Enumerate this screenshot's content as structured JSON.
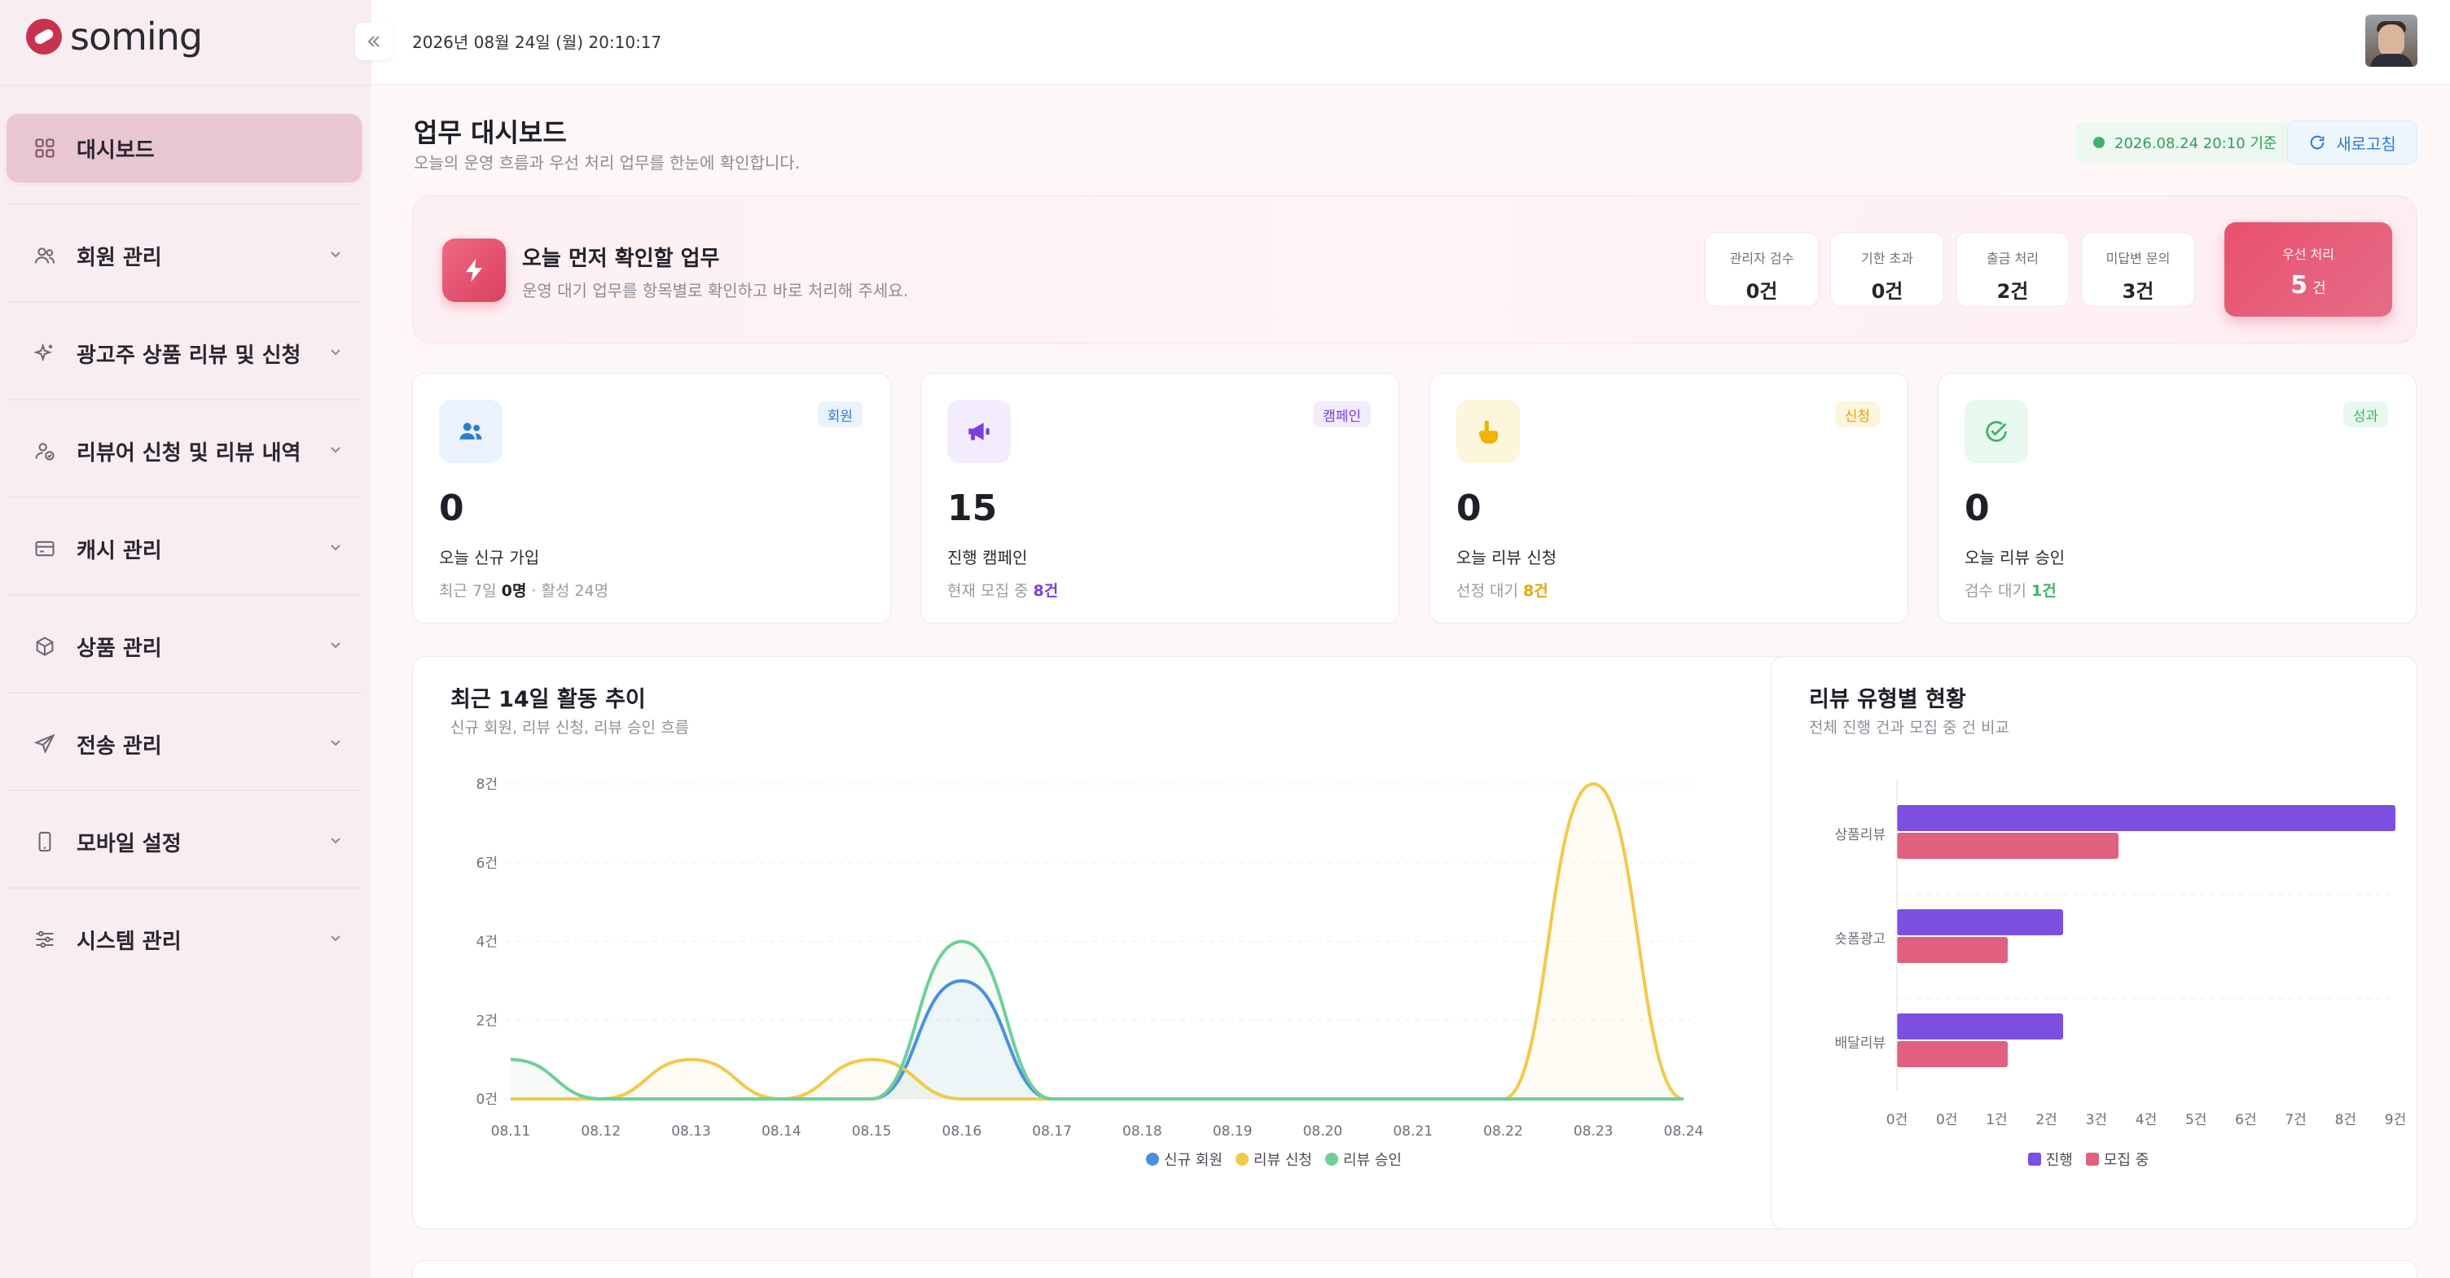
{
  "brand": {
    "name": "soming"
  },
  "topbar": {
    "datetime": "2026년 08월 24일 (월) 20:10:17"
  },
  "sidebar": {
    "items": [
      {
        "label": "대시보드",
        "icon": "grid-icon",
        "active": true
      },
      {
        "label": "회원 관리",
        "icon": "users-icon"
      },
      {
        "label": "광고주 상품 리뷰 및 신청",
        "icon": "sparkle-icon"
      },
      {
        "label": "리뷰어 신청 및 리뷰 내역",
        "icon": "user-check-icon"
      },
      {
        "label": "캐시 관리",
        "icon": "card-icon"
      },
      {
        "label": "상품 관리",
        "icon": "box-icon"
      },
      {
        "label": "전송 관리",
        "icon": "send-icon"
      },
      {
        "label": "모바일 설정",
        "icon": "mobile-icon"
      },
      {
        "label": "시스템 관리",
        "icon": "sliders-icon"
      }
    ]
  },
  "header": {
    "title": "업무 대시보드",
    "subtitle": "오늘의 운영 흐름과 우선 처리 업무를 한눈에 확인합니다.",
    "asof": "2026.08.24 20:10 기준",
    "refresh_label": "새로고침"
  },
  "banner": {
    "title": "오늘 먼저 확인할 업무",
    "subtitle": "운영 대기 업무를 항목별로 확인하고 바로 처리해 주세요.",
    "minis": [
      {
        "label": "관리자 검수",
        "value": "0건"
      },
      {
        "label": "기한 초과",
        "value": "0건"
      },
      {
        "label": "출금 처리",
        "value": "2건"
      },
      {
        "label": "미답변 문의",
        "value": "3건"
      }
    ],
    "urgent": {
      "label": "우선 처리",
      "value": "5",
      "unit": "건"
    }
  },
  "cards": [
    {
      "badge": "회원",
      "value": "0",
      "label": "오늘 신규 가입",
      "foot_pre": "최근 7일 ",
      "foot_val": "0명",
      "foot_post": " · 활성 24명",
      "color": "#2e7dd1"
    },
    {
      "badge": "캠페인",
      "value": "15",
      "label": "진행 캠페인",
      "foot_pre": "현재 모집 중 ",
      "foot_val": "8건",
      "foot_post": "",
      "color": "#7a3fe0"
    },
    {
      "badge": "신청",
      "value": "0",
      "label": "오늘 리뷰 신청",
      "foot_pre": "선정 대기 ",
      "foot_val": "8건",
      "foot_post": "",
      "color": "#e0a800"
    },
    {
      "badge": "성과",
      "value": "0",
      "label": "오늘 리뷰 승인",
      "foot_pre": "검수 대기 ",
      "foot_val": "1건",
      "foot_post": "",
      "color": "#3fb26a"
    }
  ],
  "line_panel": {
    "title": "최근 14일 활동 추이",
    "subtitle": "신규 회원, 리뷰 신청, 리뷰 승인 흐름"
  },
  "bar_panel": {
    "title": "리뷰 유형별 현황",
    "subtitle": "전체 진행 건과 모집 중 건 비교"
  },
  "chart_data": [
    {
      "type": "line",
      "x": [
        "08.11",
        "08.12",
        "08.13",
        "08.14",
        "08.15",
        "08.16",
        "08.17",
        "08.18",
        "08.19",
        "08.20",
        "08.21",
        "08.22",
        "08.23",
        "08.24"
      ],
      "y_ticks": [
        "0건",
        "2건",
        "4건",
        "6건",
        "8건"
      ],
      "ylim": [
        0,
        8
      ],
      "series": [
        {
          "name": "신규 회원",
          "color": "#4a90e2",
          "values": [
            0,
            0,
            0,
            0,
            0,
            3,
            0,
            0,
            0,
            0,
            0,
            0,
            0,
            0
          ]
        },
        {
          "name": "리뷰 신청",
          "color": "#f2c94c",
          "values": [
            0,
            0,
            1,
            0,
            1,
            0,
            0,
            0,
            0,
            0,
            0,
            0,
            8,
            0
          ]
        },
        {
          "name": "리뷰 승인",
          "color": "#6fcf97",
          "values": [
            1,
            0,
            0,
            0,
            0,
            4,
            0,
            0,
            0,
            0,
            0,
            0,
            0,
            0
          ]
        }
      ],
      "legend": "bottom"
    },
    {
      "type": "bar",
      "orientation": "horizontal",
      "categories": [
        "상품리뷰",
        "숏폼광고",
        "배달리뷰"
      ],
      "x_ticks": [
        "0건",
        "0건",
        "1건",
        "2건",
        "3건",
        "4건",
        "5건",
        "6건",
        "7건",
        "8건",
        "9건"
      ],
      "xlim": [
        0,
        9
      ],
      "series": [
        {
          "name": "진행",
          "color": "#7b4fe0",
          "values": [
            9,
            3,
            3
          ]
        },
        {
          "name": "모집 중",
          "color": "#e0607e",
          "values": [
            4,
            2,
            2
          ]
        }
      ],
      "legend": "bottom"
    }
  ]
}
